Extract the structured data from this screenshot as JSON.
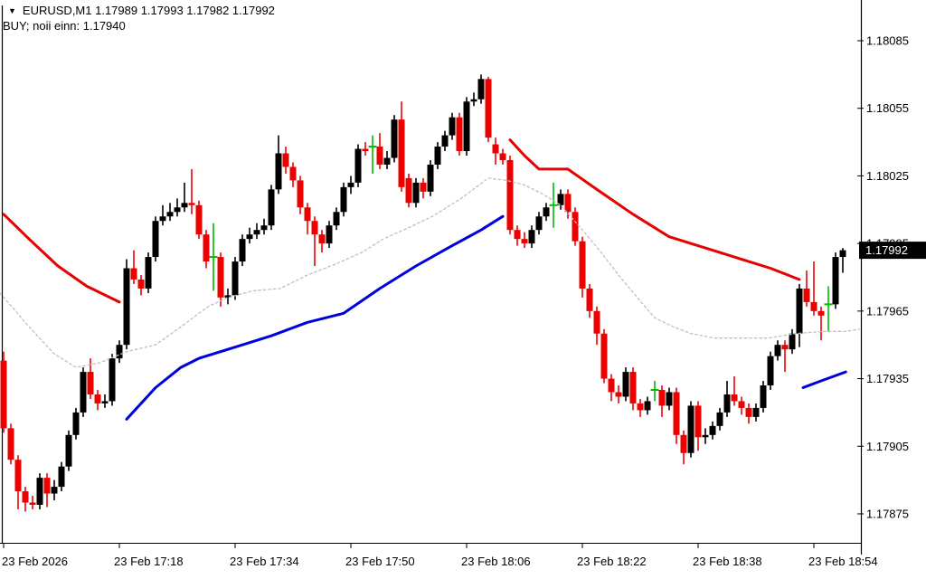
{
  "window": {
    "bg": "#FFFFFF"
  },
  "header": {
    "dropdown_icon": "▼",
    "ohlc_line": "EURUSD,M1  1.17989 1.17993 1.17982 1.17992",
    "signal_line": "BUY; noii einn: 1.17940"
  },
  "price_axis": {
    "labels": [
      1.18085,
      1.18055,
      1.18025,
      1.17995,
      1.17965,
      1.17935,
      1.17905,
      1.17875
    ],
    "badge": {
      "text": "1.17992",
      "price": 1.17992,
      "bg": "#000000",
      "fg": "#FFFFFF"
    }
  },
  "time_axis": {
    "ticks": [
      {
        "label": "23 Feb 2026",
        "index": 0
      },
      {
        "label": "23 Feb 17:18",
        "index": 16
      },
      {
        "label": "23 Feb 17:34",
        "index": 32
      },
      {
        "label": "23 Feb 17:50",
        "index": 48
      },
      {
        "label": "23 Feb 18:06",
        "index": 64
      },
      {
        "label": "23 Feb 18:22",
        "index": 80
      },
      {
        "label": "23 Feb 18:38",
        "index": 96
      },
      {
        "label": "23 Feb 18:54",
        "index": 112
      }
    ]
  },
  "chart_data": {
    "type": "candlestick",
    "symbol": "EURUSD",
    "timeframe": "M1",
    "date": "23 Feb 2026",
    "first_candle_time": "17:02",
    "interval_minutes": 1,
    "current_price": 1.17992,
    "ylim": [
      1.17862,
      1.18093
    ],
    "colors": {
      "bull": "#000000",
      "bear": "#EE0000",
      "doji": "#00BB00",
      "ma_red": "#E60000",
      "ma_blue": "#0000DD",
      "ma_gray": "#C0C0C0"
    },
    "candles": [
      [
        1.17943,
        1.17947,
        1.17911,
        1.17913
      ],
      [
        1.17913,
        1.17915,
        1.17897,
        1.17899
      ],
      [
        1.17899,
        1.17901,
        1.17877,
        1.17885
      ],
      [
        1.17885,
        1.17887,
        1.17876,
        1.1788
      ],
      [
        1.1788,
        1.17883,
        1.17877,
        1.17879
      ],
      [
        1.17879,
        1.17893,
        1.17877,
        1.17891
      ],
      [
        1.17891,
        1.17893,
        1.17878,
        1.17884
      ],
      [
        1.17884,
        1.1789,
        1.17881,
        1.17887
      ],
      [
        1.17887,
        1.17898,
        1.17885,
        1.17896
      ],
      [
        1.17896,
        1.17912,
        1.17894,
        1.1791
      ],
      [
        1.1791,
        1.17922,
        1.17908,
        1.1792
      ],
      [
        1.1792,
        1.1794,
        1.17918,
        1.17938
      ],
      [
        1.17938,
        1.17944,
        1.17926,
        1.17928
      ],
      [
        1.17928,
        1.1793,
        1.17921,
        1.17924
      ],
      [
        1.17924,
        1.17928,
        1.17922,
        1.17925
      ],
      [
        1.17925,
        1.17946,
        1.17923,
        1.17944
      ],
      [
        1.17944,
        1.17952,
        1.17942,
        1.1795
      ],
      [
        1.1795,
        1.17988,
        1.17948,
        1.17984
      ],
      [
        1.17984,
        1.17992,
        1.17977,
        1.17979
      ],
      [
        1.17979,
        1.17981,
        1.17972,
        1.17975
      ],
      [
        1.17975,
        1.17991,
        1.17973,
        1.17989
      ],
      [
        1.17989,
        1.18007,
        1.17987,
        1.18005
      ],
      [
        1.18005,
        1.18012,
        1.18003,
        1.18007
      ],
      [
        1.18007,
        1.18013,
        1.18005,
        1.18009
      ],
      [
        1.18009,
        1.18015,
        1.18007,
        1.18011
      ],
      [
        1.18011,
        1.18022,
        1.18009,
        1.18013
      ],
      [
        1.18013,
        1.18028,
        1.18008,
        1.18012
      ],
      [
        1.18012,
        1.18014,
        1.17997,
        1.17999
      ],
      [
        1.17999,
        1.18001,
        1.17984,
        1.17987
      ],
      [
        1.17989,
        1.18004,
        1.17974,
        1.17989
      ],
      [
        1.17989,
        1.17991,
        1.17967,
        1.17971
      ],
      [
        1.17971,
        1.17975,
        1.17968,
        1.17972
      ],
      [
        1.17972,
        1.17989,
        1.1797,
        1.17987
      ],
      [
        1.17987,
        1.17999,
        1.17985,
        1.17997
      ],
      [
        1.17997,
        1.18002,
        1.17995,
        1.17999
      ],
      [
        1.17999,
        1.18004,
        1.17997,
        1.18001
      ],
      [
        1.18001,
        1.18006,
        1.17999,
        1.18003
      ],
      [
        1.18003,
        1.18021,
        1.18001,
        1.18019
      ],
      [
        1.18019,
        1.18043,
        1.18017,
        1.18035
      ],
      [
        1.18035,
        1.18038,
        1.18026,
        1.18029
      ],
      [
        1.18029,
        1.18031,
        1.1802,
        1.18023
      ],
      [
        1.18023,
        1.18025,
        1.18008,
        1.18011
      ],
      [
        1.18011,
        1.18013,
        1.17999,
        1.18005
      ],
      [
        1.18005,
        1.18007,
        1.17985,
        1.17999
      ],
      [
        1.17999,
        1.18001,
        1.17991,
        1.17995
      ],
      [
        1.17995,
        1.18005,
        1.17993,
        1.18003
      ],
      [
        1.18003,
        1.18011,
        1.18001,
        1.18009
      ],
      [
        1.18009,
        1.18022,
        1.18007,
        1.1802
      ],
      [
        1.1802,
        1.18025,
        1.18017,
        1.18022
      ],
      [
        1.18022,
        1.18039,
        1.1802,
        1.18037
      ],
      [
        1.18037,
        1.1804,
        1.18034,
        1.18036
      ],
      [
        1.18038,
        1.18043,
        1.18026,
        1.18038
      ],
      [
        1.18038,
        1.18044,
        1.18028,
        1.1803
      ],
      [
        1.1803,
        1.18036,
        1.18028,
        1.18033
      ],
      [
        1.18033,
        1.18052,
        1.18031,
        1.1805
      ],
      [
        1.1805,
        1.18058,
        1.18018,
        1.1802
      ],
      [
        1.18024,
        1.18026,
        1.18011,
        1.18013
      ],
      [
        1.18013,
        1.18024,
        1.18011,
        1.18022
      ],
      [
        1.18022,
        1.18024,
        1.18015,
        1.18018
      ],
      [
        1.18018,
        1.18032,
        1.18016,
        1.1803
      ],
      [
        1.1803,
        1.1804,
        1.18028,
        1.18038
      ],
      [
        1.18038,
        1.18045,
        1.18036,
        1.18043
      ],
      [
        1.18043,
        1.18053,
        1.18041,
        1.18051
      ],
      [
        1.18051,
        1.18053,
        1.18034,
        1.18036
      ],
      [
        1.18036,
        1.1806,
        1.18034,
        1.18058
      ],
      [
        1.18058,
        1.18062,
        1.18056,
        1.18059
      ],
      [
        1.18059,
        1.1807,
        1.18057,
        1.18068
      ],
      [
        1.18068,
        1.18069,
        1.1804,
        1.18042
      ],
      [
        1.18039,
        1.18042,
        1.1803,
        1.18035
      ],
      [
        1.18035,
        1.18037,
        1.1803,
        1.18032
      ],
      [
        1.18032,
        1.18034,
        1.17999,
        1.18001
      ],
      [
        1.18001,
        1.18003,
        1.17994,
        1.17997
      ],
      [
        1.17997,
        1.18,
        1.17993,
        1.17995
      ],
      [
        1.17995,
        1.18003,
        1.17993,
        1.18001
      ],
      [
        1.18001,
        1.18009,
        1.17999,
        1.18007
      ],
      [
        1.18007,
        1.18013,
        1.18005,
        1.18011
      ],
      [
        1.18012,
        1.18022,
        1.18002,
        1.18012
      ],
      [
        1.18012,
        1.18019,
        1.1801,
        1.18017
      ],
      [
        1.18017,
        1.18019,
        1.18006,
        1.18009
      ],
      [
        1.18009,
        1.18011,
        1.17994,
        1.17996
      ],
      [
        1.17996,
        1.17998,
        1.17971,
        1.17975
      ],
      [
        1.17975,
        1.17977,
        1.17962,
        1.17965
      ],
      [
        1.17965,
        1.17967,
        1.1795,
        1.17955
      ],
      [
        1.17955,
        1.17957,
        1.17933,
        1.17935
      ],
      [
        1.17935,
        1.17937,
        1.17925,
        1.17929
      ],
      [
        1.17929,
        1.17932,
        1.17924,
        1.17927
      ],
      [
        1.17927,
        1.1794,
        1.17925,
        1.17938
      ],
      [
        1.17938,
        1.1794,
        1.17921,
        1.17924
      ],
      [
        1.17924,
        1.17926,
        1.17918,
        1.17921
      ],
      [
        1.17921,
        1.17927,
        1.17919,
        1.17925
      ],
      [
        1.1793,
        1.17934,
        1.17925,
        1.1793
      ],
      [
        1.1793,
        1.17932,
        1.17918,
        1.17923
      ],
      [
        1.17923,
        1.17931,
        1.17921,
        1.17929
      ],
      [
        1.17929,
        1.17931,
        1.17906,
        1.1791
      ],
      [
        1.1791,
        1.17912,
        1.17897,
        1.17902
      ],
      [
        1.17902,
        1.17925,
        1.179,
        1.17923
      ],
      [
        1.17923,
        1.17925,
        1.17903,
        1.17909
      ],
      [
        1.17909,
        1.17913,
        1.17906,
        1.1791
      ],
      [
        1.1791,
        1.17916,
        1.17908,
        1.17914
      ],
      [
        1.17914,
        1.17922,
        1.17912,
        1.1792
      ],
      [
        1.1792,
        1.17934,
        1.17918,
        1.17928
      ],
      [
        1.17928,
        1.17936,
        1.17923,
        1.17925
      ],
      [
        1.17925,
        1.17927,
        1.17919,
        1.17922
      ],
      [
        1.17922,
        1.17924,
        1.17915,
        1.17918
      ],
      [
        1.17918,
        1.17924,
        1.17916,
        1.17922
      ],
      [
        1.17922,
        1.17934,
        1.1792,
        1.17932
      ],
      [
        1.17932,
        1.17947,
        1.1793,
        1.17945
      ],
      [
        1.17945,
        1.17952,
        1.17943,
        1.1795
      ],
      [
        1.1795,
        1.17952,
        1.17938,
        1.17948
      ],
      [
        1.17948,
        1.17957,
        1.17946,
        1.17955
      ],
      [
        1.17955,
        1.17977,
        1.17949,
        1.17975
      ],
      [
        1.17975,
        1.17983,
        1.17967,
        1.17969
      ],
      [
        1.17969,
        1.17987,
        1.17963,
        1.17965
      ],
      [
        1.17965,
        1.17967,
        1.17952,
        1.17963
      ],
      [
        1.17968,
        1.17976,
        1.17956,
        1.17968
      ],
      [
        1.17968,
        1.17991,
        1.17966,
        1.17989
      ],
      [
        1.17989,
        1.17993,
        1.17982,
        1.17992
      ]
    ],
    "indicators": [
      {
        "name": "red-ma-line",
        "style": "solid",
        "color_key": "ma_red",
        "stroke_width": 3,
        "segments": [
          [
            [
              0,
              1.18008
            ],
            [
              3.5,
              1.17997
            ],
            [
              7.5,
              1.17985
            ],
            [
              11.5,
              1.17976
            ],
            [
              16,
              1.17969
            ]
          ],
          [
            [
              70,
              1.18041
            ],
            [
              72,
              1.18034
            ],
            [
              74,
              1.18028
            ],
            [
              78,
              1.18028
            ],
            [
              82,
              1.18019
            ],
            [
              87,
              1.18008
            ],
            [
              92,
              1.17998
            ],
            [
              97,
              1.17993
            ],
            [
              102,
              1.17988
            ],
            [
              106,
              1.17984
            ],
            [
              110,
              1.17979
            ]
          ]
        ]
      },
      {
        "name": "blue-ma-line",
        "style": "solid",
        "color_key": "ma_blue",
        "stroke_width": 3,
        "segments": [
          [
            [
              17,
              1.17917
            ],
            [
              21,
              1.17931
            ],
            [
              24.5,
              1.1794
            ],
            [
              27,
              1.17944
            ],
            [
              32,
              1.17949
            ],
            [
              37,
              1.17954
            ],
            [
              42,
              1.1796
            ],
            [
              47,
              1.17964
            ],
            [
              52,
              1.17975
            ],
            [
              57,
              1.17985
            ],
            [
              62,
              1.17994
            ],
            [
              66,
              1.18001
            ],
            [
              69,
              1.18007
            ]
          ],
          [
            [
              110.5,
              1.17931
            ],
            [
              113,
              1.17934
            ],
            [
              116.4,
              1.17938
            ]
          ]
        ]
      },
      {
        "name": "gray-dashed-ma-line",
        "style": "dashed",
        "color_key": "ma_gray",
        "stroke_width": 1.3,
        "segments": [
          [
            [
              -0.5,
              1.17973
            ],
            [
              3.25,
              1.17959
            ],
            [
              7,
              1.17946
            ],
            [
              10,
              1.1794
            ],
            [
              13.25,
              1.17942
            ],
            [
              17,
              1.17947
            ],
            [
              21,
              1.1795
            ],
            [
              24.5,
              1.17958
            ],
            [
              28.25,
              1.17967
            ],
            [
              31,
              1.17971
            ],
            [
              34.5,
              1.17974
            ],
            [
              38.25,
              1.17975
            ],
            [
              42,
              1.17981
            ],
            [
              46,
              1.17986
            ],
            [
              49.5,
              1.17991
            ],
            [
              52.5,
              1.17997
            ],
            [
              56,
              1.18002
            ],
            [
              59.25,
              1.18007
            ],
            [
              63.25,
              1.18015
            ],
            [
              67,
              1.18024
            ],
            [
              69.5,
              1.18023
            ],
            [
              72,
              1.18021
            ],
            [
              74.5,
              1.18017
            ],
            [
              77,
              1.18012
            ],
            [
              80,
              1.18001
            ],
            [
              82.6,
              1.17991
            ],
            [
              85,
              1.17981
            ],
            [
              87.6,
              1.17971
            ],
            [
              90,
              1.17962
            ],
            [
              92.6,
              1.17958
            ],
            [
              95,
              1.17955
            ],
            [
              98.25,
              1.17953
            ],
            [
              102,
              1.17953
            ],
            [
              105.75,
              1.17953
            ],
            [
              109.5,
              1.17955
            ],
            [
              113.25,
              1.17956
            ],
            [
              116.4,
              1.17956
            ],
            [
              118.3,
              1.17957
            ]
          ]
        ]
      }
    ]
  }
}
